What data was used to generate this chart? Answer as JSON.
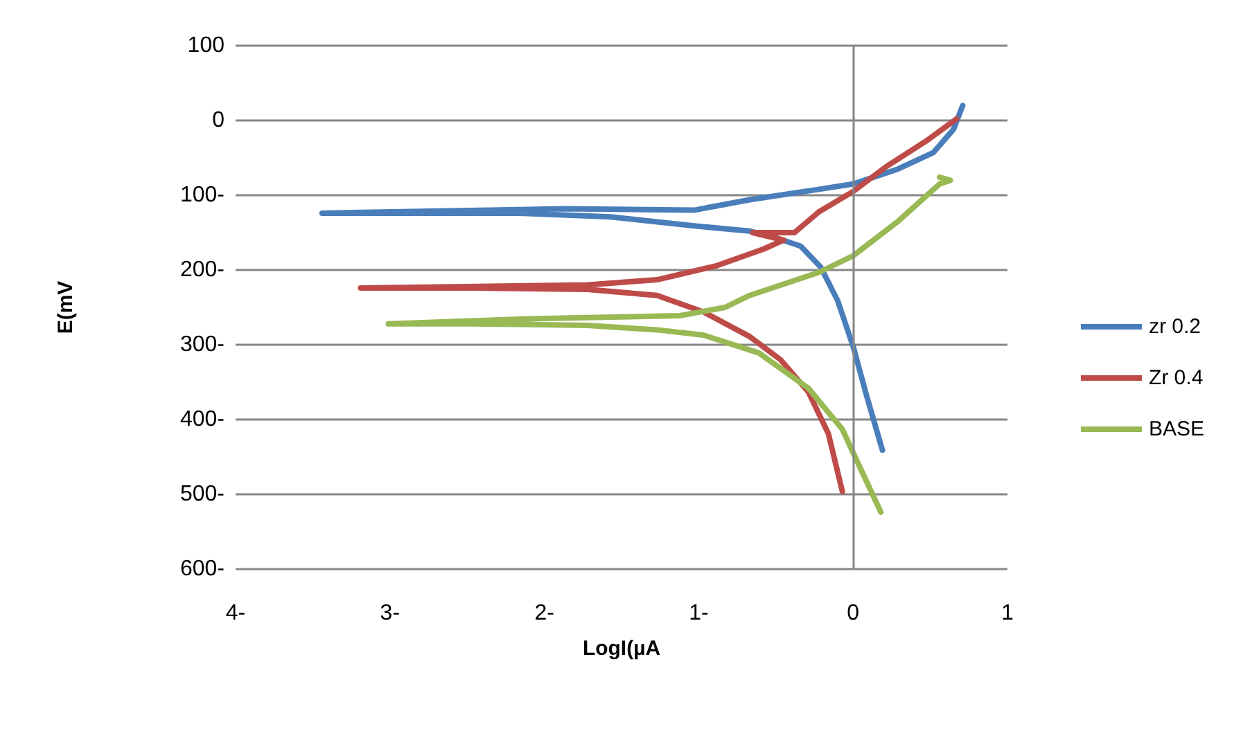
{
  "chart_data": {
    "type": "line",
    "xlabel": "LogI(µA",
    "ylabel": "E(mV",
    "xlim": [
      -4,
      1
    ],
    "xticks": [
      {
        "value": -4,
        "label": "4-"
      },
      {
        "value": -3,
        "label": "3-"
      },
      {
        "value": -2,
        "label": "2-"
      },
      {
        "value": -1,
        "label": "1-"
      },
      0,
      1
    ],
    "ylim": [
      -600,
      100
    ],
    "yticks": [
      {
        "value": -600,
        "label": "600-"
      },
      {
        "value": -500,
        "label": "500-"
      },
      {
        "value": -400,
        "label": "400-"
      },
      {
        "value": -300,
        "label": "300-"
      },
      {
        "value": -200,
        "label": "200-"
      },
      {
        "value": -100,
        "label": "100-"
      },
      0,
      100
    ],
    "grid": "y",
    "legend": "right",
    "marker": "none",
    "line_style": "solid",
    "ref_lines": [
      {
        "axis": "x",
        "value": 0,
        "color": "#868686"
      }
    ],
    "series": [
      {
        "name": "zr 0.2",
        "color": "#4a7ebb",
        "x": [
          0.19,
          0.09,
          0,
          -0.1,
          -0.21,
          -0.34,
          -0.5,
          -0.67,
          -1.03,
          -1.57,
          -2.17,
          -3.44,
          -1.87,
          -1.03,
          -0.67,
          -0.22,
          0,
          0.29,
          0.52,
          0.65,
          0.71
        ],
        "values": [
          -441,
          -370,
          -302,
          -241,
          -196,
          -168,
          -157,
          -148,
          -141,
          -129,
          -124,
          -124,
          -118,
          -120,
          -106,
          -92,
          -85,
          -65,
          -43,
          -12,
          20
        ]
      },
      {
        "name": "Zr 0.4",
        "color": "#be4b48",
        "x": [
          -0.07,
          -0.16,
          -0.29,
          -0.47,
          -0.67,
          -0.97,
          -1.27,
          -1.72,
          -2.47,
          -3.19,
          -1.72,
          -1.27,
          -0.88,
          -0.58,
          -0.45,
          -0.65,
          -0.38,
          -0.22,
          0,
          0.22,
          0.47,
          0.67
        ],
        "values": [
          -496,
          -419,
          -363,
          -320,
          -289,
          -256,
          -234,
          -226,
          -224,
          -224,
          -220,
          -213,
          -194,
          -172,
          -160,
          -150,
          -150,
          -122,
          -95,
          -61,
          -28,
          2
        ]
      },
      {
        "name": "BASE",
        "color": "#98b954",
        "x": [
          0.18,
          0.04,
          -0.07,
          -0.29,
          -0.61,
          -0.97,
          -1.27,
          -1.72,
          -2.47,
          -3.01,
          -2.05,
          -1.12,
          -0.83,
          -0.67,
          -0.22,
          0,
          0.29,
          0.56,
          0.63,
          0.56
        ],
        "values": [
          -524,
          -462,
          -413,
          -358,
          -311,
          -287,
          -280,
          -274,
          -272,
          -272,
          -265,
          -261,
          -250,
          -234,
          -203,
          -181,
          -135,
          -85,
          -80,
          -76
        ]
      }
    ]
  }
}
